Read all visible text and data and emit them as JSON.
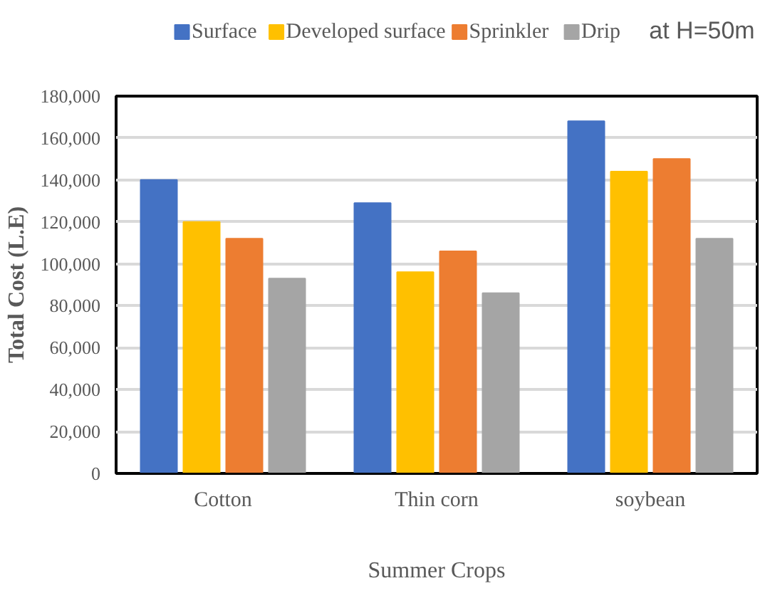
{
  "chart_data": {
    "type": "bar",
    "xlabel": "Summer Crops",
    "ylabel": "Total Cost (L.E)",
    "annotations": [
      "at H=50m"
    ],
    "categories": [
      "Cotton",
      "Thin corn",
      "soybean"
    ],
    "series": [
      {
        "name": "Surface",
        "color": "#4472c4",
        "values": [
          140000,
          129000,
          168000
        ]
      },
      {
        "name": "Developed surface",
        "color": "#ffc000",
        "values": [
          120000,
          96000,
          144000
        ]
      },
      {
        "name": "Sprinkler",
        "color": "#ed7d31",
        "values": [
          112000,
          106000,
          150000
        ]
      },
      {
        "name": "Drip",
        "color": "#a5a5a5",
        "values": [
          93000,
          86000,
          112000
        ]
      }
    ],
    "ylim": [
      0,
      180000
    ],
    "yticks": [
      {
        "value": 0,
        "label": "0"
      },
      {
        "value": 20000,
        "label": "20,000"
      },
      {
        "value": 40000,
        "label": "40,000"
      },
      {
        "value": 60000,
        "label": "60,000"
      },
      {
        "value": 80000,
        "label": "80,000"
      },
      {
        "value": 100000,
        "label": "100,000"
      },
      {
        "value": 120000,
        "label": "120,000"
      },
      {
        "value": 140000,
        "label": "140,000"
      },
      {
        "value": 160000,
        "label": "160,000"
      },
      {
        "value": 180000,
        "label": "180,000"
      }
    ],
    "grid": "y",
    "legend": "top"
  }
}
